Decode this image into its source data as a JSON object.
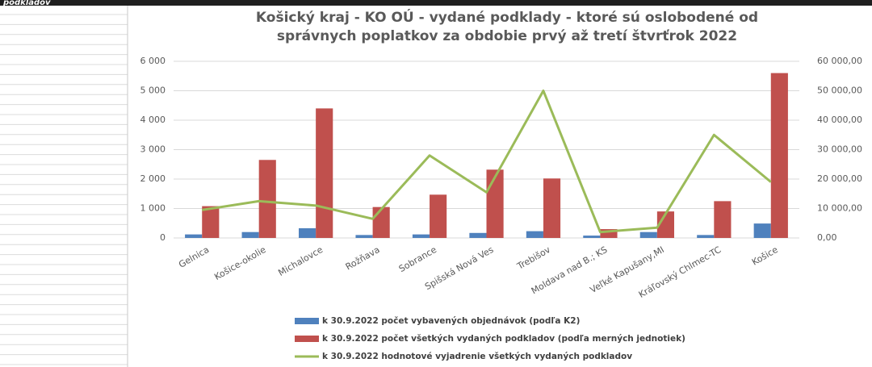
{
  "sheet": {
    "cell_text": "podkladov"
  },
  "chart_data": {
    "type": "bar",
    "title": [
      "Košický kraj - KO OÚ - vydané podklady - ktoré sú oslobodené od",
      "správnych poplatkov za obdobie prvý až tretí štvrťrok 2022"
    ],
    "categories": [
      "Gelnica",
      "Košice-okolie",
      "Michalovce",
      "Rožňava",
      "Sobrance",
      "Spišská Nová Ves",
      "Trebišov",
      "Moldava nad B.; KS",
      "Veľké Kapušany,MI",
      "Kráľovský Chlmec-TC",
      "Košice"
    ],
    "series": [
      {
        "name": "k 30.9.2022 počet vybavených objednávok (podľa K2)",
        "color": "#4f81bd",
        "type": "bar",
        "values": [
          120,
          200,
          330,
          100,
          120,
          170,
          230,
          80,
          200,
          100,
          490
        ]
      },
      {
        "name": "k 30.9.2022 počet všetkých vydaných podkladov (podľa merných jednotiek)",
        "color": "#c0504d",
        "type": "bar",
        "values": [
          1080,
          2650,
          4400,
          1050,
          1470,
          2320,
          2020,
          300,
          900,
          1250,
          5600
        ]
      },
      {
        "name": "k 30.9.2022 hodnotové vyjadrenie všetkých vydaných podkladov",
        "color": "#9bbb59",
        "type": "line",
        "axis": "y2",
        "values": [
          9500,
          12500,
          11000,
          6500,
          28000,
          15500,
          50000,
          2000,
          3500,
          35000,
          19000
        ]
      }
    ],
    "ylim": [
      0,
      6000
    ],
    "yticks": [
      0,
      {
        "value": 1000,
        "label": "1 000"
      },
      {
        "value": 2000,
        "label": "2 000"
      },
      {
        "value": 3000,
        "label": "3 000"
      },
      {
        "value": 4000,
        "label": "4 000"
      },
      {
        "value": 5000,
        "label": "5 000"
      },
      {
        "value": 6000,
        "label": "6 000"
      }
    ],
    "y2lim": [
      0,
      60000
    ],
    "y2ticks": [
      {
        "value": 0,
        "label": "0,00"
      },
      {
        "value": 10000,
        "label": "10 000,00"
      },
      {
        "value": 20000,
        "label": "20 000,00"
      },
      {
        "value": 30000,
        "label": "30 000,00"
      },
      {
        "value": 40000,
        "label": "40 000,00"
      },
      {
        "value": 50000,
        "label": "50 000,00"
      },
      {
        "value": 60000,
        "label": "60 000,00"
      }
    ],
    "legend": "bottom"
  }
}
